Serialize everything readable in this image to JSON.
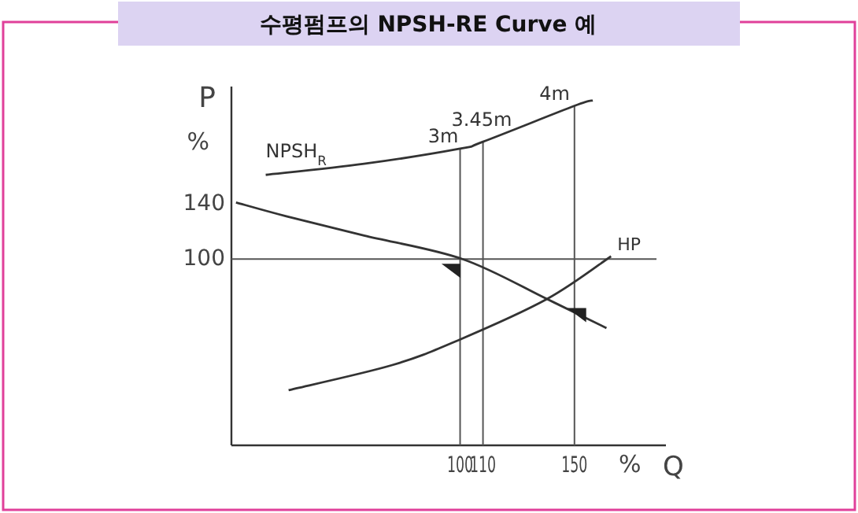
{
  "chart_data": {
    "type": "line",
    "title": "수평펌프의 NPSH-RE Curve 예",
    "ylabel": "P",
    "xlabel": "Q",
    "annotations": [
      {
        "text": "3m",
        "x": 100,
        "y": 180
      },
      {
        "text": "3.45m",
        "x": 110,
        "y": 185
      },
      {
        "text": "4m",
        "x": 150,
        "y": 211
      },
      "%",
      "%"
    ],
    "xlim": [
      0,
      190
    ],
    "ylim": [
      -35,
      225
    ],
    "xticks": [
      100,
      110,
      150
    ],
    "yticks": [
      100,
      140
    ],
    "grid": false,
    "legend": false,
    "marker": "none",
    "line_style": "solid",
    "ref_lines": [
      {
        "axis": "y",
        "value": 100,
        "color": "#555555"
      },
      {
        "axis": "x",
        "value": 100,
        "color": "#555555"
      },
      {
        "axis": "x",
        "value": 110,
        "color": "#555555"
      },
      {
        "axis": "x",
        "value": 150,
        "color": "#555555"
      }
    ],
    "series": [
      {
        "name": "NPSH$_{R}$",
        "color": "#333333",
        "x": [
          15,
          58,
          100,
          110,
          150,
          158
        ],
        "values": [
          161,
          169,
          180,
          185,
          211,
          215
        ]
      },
      {
        "color": "#333333",
        "x": [
          2,
          24,
          58,
          101,
          138,
          164
        ],
        "values": [
          141,
          131,
          117,
          100,
          71,
          50
        ]
      },
      {
        "name": "HP",
        "color": "#333333",
        "x": [
          25,
          70,
          99,
          138,
          166
        ],
        "values": [
          5,
          23,
          41,
          71,
          102
        ]
      },
      {
        "type": "scatter",
        "marker": "triangle",
        "color": "#222222",
        "x": [
          96,
          151
        ],
        "values": [
          92,
          60
        ]
      }
    ]
  }
}
